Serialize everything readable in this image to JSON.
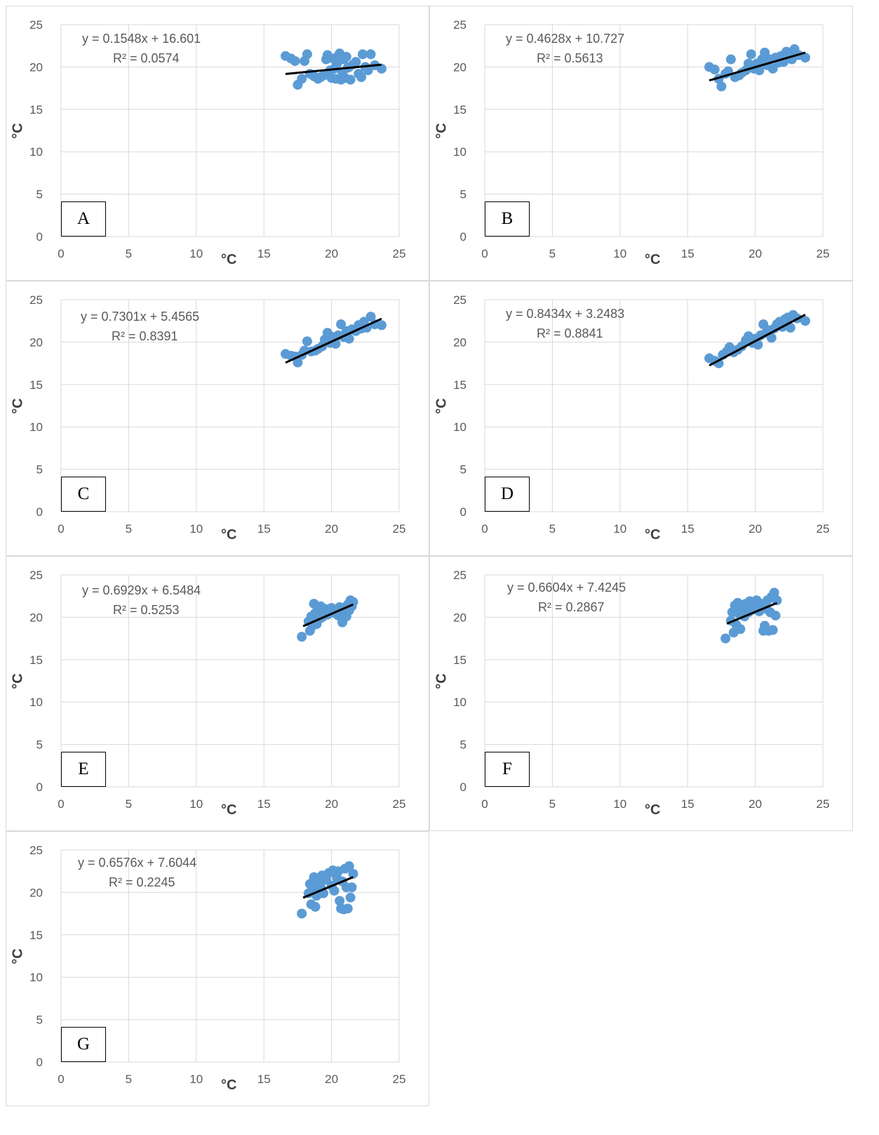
{
  "chart_data": [
    {
      "type": "scatter",
      "panel_label": "A",
      "xlabel": "°C",
      "ylabel": "°C",
      "xlim": [
        0,
        25
      ],
      "ylim": [
        0,
        25
      ],
      "xticks": [
        "0",
        "5",
        "10",
        "15",
        "20",
        "25"
      ],
      "yticks": [
        "0",
        "5",
        "10",
        "15",
        "20",
        "25"
      ],
      "grid": true,
      "trendline": {
        "equation": "y = 0.1548x + 16.601",
        "r2": "R² = 0.0574",
        "slope": 0.1548,
        "intercept": 16.601,
        "x_range": [
          16.6,
          23.7
        ]
      },
      "points": [
        [
          16.6,
          21.3
        ],
        [
          17.0,
          21.0
        ],
        [
          17.3,
          20.7
        ],
        [
          17.5,
          17.9
        ],
        [
          17.8,
          18.6
        ],
        [
          18.0,
          20.7
        ],
        [
          18.2,
          21.5
        ],
        [
          18.4,
          19.2
        ],
        [
          18.7,
          18.9
        ],
        [
          19.0,
          18.6
        ],
        [
          19.2,
          18.8
        ],
        [
          19.4,
          19.0
        ],
        [
          19.6,
          20.9
        ],
        [
          19.7,
          21.4
        ],
        [
          19.9,
          19.6
        ],
        [
          20.0,
          18.7
        ],
        [
          20.1,
          21.0
        ],
        [
          20.2,
          19.8
        ],
        [
          20.3,
          18.6
        ],
        [
          20.4,
          20.4
        ],
        [
          20.5,
          21.3
        ],
        [
          20.6,
          21.6
        ],
        [
          20.7,
          18.5
        ],
        [
          20.8,
          19.4
        ],
        [
          20.9,
          20.9
        ],
        [
          21.0,
          18.7
        ],
        [
          21.1,
          21.2
        ],
        [
          21.2,
          19.9
        ],
        [
          21.3,
          20.0
        ],
        [
          21.4,
          18.5
        ],
        [
          21.6,
          20.3
        ],
        [
          21.8,
          20.6
        ],
        [
          22.0,
          19.2
        ],
        [
          22.2,
          18.8
        ],
        [
          22.3,
          21.5
        ],
        [
          22.5,
          20.0
        ],
        [
          22.7,
          19.6
        ],
        [
          22.9,
          21.5
        ],
        [
          23.2,
          20.2
        ],
        [
          23.7,
          19.8
        ]
      ]
    },
    {
      "type": "scatter",
      "panel_label": "B",
      "xlabel": "°C",
      "ylabel": "°C",
      "xlim": [
        0,
        25
      ],
      "ylim": [
        0,
        25
      ],
      "xticks": [
        "0",
        "5",
        "10",
        "15",
        "20",
        "25"
      ],
      "yticks": [
        "0",
        "5",
        "10",
        "15",
        "20",
        "25"
      ],
      "grid": true,
      "trendline": {
        "equation": "y = 0.4628x + 10.727",
        "r2": "R² = 0.5613",
        "slope": 0.4628,
        "intercept": 10.727,
        "x_range": [
          16.6,
          23.7
        ]
      },
      "points": [
        [
          16.6,
          20.0
        ],
        [
          17.0,
          19.7
        ],
        [
          17.3,
          18.6
        ],
        [
          17.5,
          17.7
        ],
        [
          17.8,
          19.2
        ],
        [
          18.0,
          19.5
        ],
        [
          18.2,
          20.9
        ],
        [
          18.5,
          18.8
        ],
        [
          18.8,
          19.0
        ],
        [
          19.0,
          19.3
        ],
        [
          19.3,
          19.6
        ],
        [
          19.5,
          20.4
        ],
        [
          19.7,
          21.5
        ],
        [
          19.9,
          19.8
        ],
        [
          20.1,
          20.4
        ],
        [
          20.3,
          19.6
        ],
        [
          20.5,
          20.9
        ],
        [
          20.7,
          21.7
        ],
        [
          20.9,
          20.2
        ],
        [
          21.1,
          20.9
        ],
        [
          21.3,
          19.8
        ],
        [
          21.5,
          21.1
        ],
        [
          21.7,
          20.5
        ],
        [
          21.9,
          21.3
        ],
        [
          22.1,
          20.6
        ],
        [
          22.3,
          21.8
        ],
        [
          22.5,
          21.4
        ],
        [
          22.7,
          20.9
        ],
        [
          22.9,
          22.1
        ],
        [
          23.2,
          21.4
        ],
        [
          23.7,
          21.1
        ]
      ]
    },
    {
      "type": "scatter",
      "panel_label": "C",
      "xlabel": "°C",
      "ylabel": "°C",
      "xlim": [
        0,
        25
      ],
      "ylim": [
        0,
        25
      ],
      "xticks": [
        "0",
        "5",
        "10",
        "15",
        "20",
        "25"
      ],
      "yticks": [
        "0",
        "5",
        "10",
        "15",
        "20",
        "25"
      ],
      "grid": true,
      "trendline": {
        "equation": "y = 0.7301x + 5.4565",
        "r2": "R² = 0.8391",
        "slope": 0.7301,
        "intercept": 5.4565,
        "x_range": [
          16.6,
          23.7
        ]
      },
      "points": [
        [
          16.6,
          18.6
        ],
        [
          17.0,
          18.4
        ],
        [
          17.3,
          18.3
        ],
        [
          17.5,
          17.6
        ],
        [
          17.8,
          18.5
        ],
        [
          18.0,
          19.0
        ],
        [
          18.2,
          20.1
        ],
        [
          18.5,
          18.9
        ],
        [
          18.8,
          19.0
        ],
        [
          19.0,
          19.2
        ],
        [
          19.3,
          19.5
        ],
        [
          19.5,
          20.3
        ],
        [
          19.7,
          21.1
        ],
        [
          19.9,
          19.9
        ],
        [
          20.1,
          20.6
        ],
        [
          20.3,
          19.8
        ],
        [
          20.5,
          20.8
        ],
        [
          20.7,
          22.1
        ],
        [
          20.9,
          20.6
        ],
        [
          21.1,
          21.3
        ],
        [
          21.3,
          20.4
        ],
        [
          21.5,
          21.5
        ],
        [
          21.8,
          21.3
        ],
        [
          22.0,
          22.0
        ],
        [
          22.2,
          21.6
        ],
        [
          22.4,
          22.4
        ],
        [
          22.6,
          21.7
        ],
        [
          22.9,
          23.0
        ],
        [
          23.2,
          22.1
        ],
        [
          23.7,
          22.0
        ]
      ]
    },
    {
      "type": "scatter",
      "panel_label": "D",
      "xlabel": "°C",
      "ylabel": "°C",
      "xlim": [
        0,
        25
      ],
      "ylim": [
        0,
        25
      ],
      "xticks": [
        "0",
        "5",
        "10",
        "15",
        "20",
        "25"
      ],
      "yticks": [
        "0",
        "5",
        "10",
        "15",
        "20",
        "25"
      ],
      "grid": true,
      "trendline": {
        "equation": "y = 0.8434x + 3.2483",
        "r2": "R² = 0.8841",
        "slope": 0.8434,
        "intercept": 3.2483,
        "x_range": [
          16.6,
          23.7
        ]
      },
      "points": [
        [
          16.6,
          18.1
        ],
        [
          17.0,
          17.8
        ],
        [
          17.3,
          17.5
        ],
        [
          17.6,
          18.5
        ],
        [
          17.9,
          18.9
        ],
        [
          18.1,
          19.4
        ],
        [
          18.4,
          18.8
        ],
        [
          18.7,
          19.1
        ],
        [
          19.0,
          19.5
        ],
        [
          19.3,
          20.2
        ],
        [
          19.5,
          20.7
        ],
        [
          19.8,
          19.9
        ],
        [
          20.0,
          20.4
        ],
        [
          20.2,
          19.7
        ],
        [
          20.4,
          20.8
        ],
        [
          20.6,
          22.1
        ],
        [
          20.8,
          21.1
        ],
        [
          21.0,
          21.4
        ],
        [
          21.2,
          20.5
        ],
        [
          21.4,
          21.6
        ],
        [
          21.6,
          22.1
        ],
        [
          21.8,
          22.4
        ],
        [
          22.0,
          21.8
        ],
        [
          22.2,
          22.7
        ],
        [
          22.4,
          22.9
        ],
        [
          22.6,
          21.7
        ],
        [
          22.8,
          23.2
        ],
        [
          23.1,
          22.8
        ],
        [
          23.7,
          22.5
        ]
      ]
    },
    {
      "type": "scatter",
      "panel_label": "E",
      "xlabel": "°C",
      "ylabel": "°C",
      "xlim": [
        0,
        25
      ],
      "ylim": [
        0,
        25
      ],
      "xticks": [
        "0",
        "5",
        "10",
        "15",
        "20",
        "25"
      ],
      "yticks": [
        "0",
        "5",
        "10",
        "15",
        "20",
        "25"
      ],
      "grid": true,
      "trendline": {
        "equation": "y = 0.6929x + 6.5484",
        "r2": "R² = 0.5253",
        "slope": 0.6929,
        "intercept": 6.5484,
        "x_range": [
          17.9,
          21.6
        ]
      },
      "points": [
        [
          17.8,
          17.7
        ],
        [
          18.3,
          19.5
        ],
        [
          18.4,
          18.4
        ],
        [
          18.5,
          20.1
        ],
        [
          18.6,
          19.0
        ],
        [
          18.7,
          21.6
        ],
        [
          18.8,
          20.5
        ],
        [
          18.9,
          19.2
        ],
        [
          19.0,
          20.8
        ],
        [
          19.1,
          19.8
        ],
        [
          19.2,
          21.3
        ],
        [
          19.3,
          20.0
        ],
        [
          19.4,
          20.6
        ],
        [
          19.5,
          21.0
        ],
        [
          19.7,
          20.3
        ],
        [
          19.8,
          20.8
        ],
        [
          20.0,
          21.1
        ],
        [
          20.2,
          20.5
        ],
        [
          20.4,
          20.9
        ],
        [
          20.5,
          20.2
        ],
        [
          20.6,
          21.2
        ],
        [
          20.8,
          19.4
        ],
        [
          20.9,
          20.4
        ],
        [
          21.0,
          21.0
        ],
        [
          21.1,
          20.1
        ],
        [
          21.2,
          21.5
        ],
        [
          21.3,
          20.8
        ],
        [
          21.4,
          22.0
        ],
        [
          21.5,
          21.3
        ],
        [
          21.6,
          21.8
        ]
      ]
    },
    {
      "type": "scatter",
      "panel_label": "F",
      "xlabel": "°C",
      "ylabel": "°C",
      "xlim": [
        0,
        25
      ],
      "ylim": [
        0,
        25
      ],
      "xticks": [
        "0",
        "5",
        "10",
        "15",
        "20",
        "25"
      ],
      "yticks": [
        "0",
        "5",
        "10",
        "15",
        "20",
        "25"
      ],
      "grid": true,
      "trendline": {
        "equation": "y = 0.6604x + 7.4245",
        "r2": "R² = 0.2867",
        "slope": 0.6604,
        "intercept": 7.4245,
        "x_range": [
          17.9,
          21.6
        ]
      },
      "points": [
        [
          17.8,
          17.5
        ],
        [
          18.2,
          19.6
        ],
        [
          18.3,
          20.6
        ],
        [
          18.4,
          18.2
        ],
        [
          18.5,
          21.4
        ],
        [
          18.6,
          19.1
        ],
        [
          18.7,
          21.7
        ],
        [
          18.8,
          20.4
        ],
        [
          18.9,
          18.6
        ],
        [
          19.0,
          21.2
        ],
        [
          19.2,
          20.1
        ],
        [
          19.3,
          21.6
        ],
        [
          19.5,
          20.6
        ],
        [
          19.6,
          21.9
        ],
        [
          19.8,
          20.9
        ],
        [
          20.0,
          21.4
        ],
        [
          20.1,
          22.0
        ],
        [
          20.3,
          20.7
        ],
        [
          20.4,
          21.6
        ],
        [
          20.6,
          18.4
        ],
        [
          20.7,
          19.0
        ],
        [
          20.8,
          21.0
        ],
        [
          20.9,
          22.0
        ],
        [
          21.0,
          18.4
        ],
        [
          21.1,
          20.6
        ],
        [
          21.2,
          22.4
        ],
        [
          21.3,
          18.5
        ],
        [
          21.4,
          22.9
        ],
        [
          21.5,
          20.2
        ],
        [
          21.6,
          22.0
        ]
      ]
    },
    {
      "type": "scatter",
      "panel_label": "G",
      "xlabel": "°C",
      "ylabel": "°C",
      "xlim": [
        0,
        25
      ],
      "ylim": [
        0,
        25
      ],
      "xticks": [
        "0",
        "5",
        "10",
        "15",
        "20",
        "25"
      ],
      "yticks": [
        "0",
        "5",
        "10",
        "15",
        "20",
        "25"
      ],
      "grid": true,
      "trendline": {
        "equation": "y = 0.6576x + 7.6044",
        "r2": "R² = 0.2245",
        "slope": 0.6576,
        "intercept": 7.6044,
        "x_range": [
          17.9,
          21.6
        ]
      },
      "points": [
        [
          17.8,
          17.5
        ],
        [
          18.3,
          19.9
        ],
        [
          18.4,
          21.0
        ],
        [
          18.5,
          18.6
        ],
        [
          18.6,
          20.4
        ],
        [
          18.7,
          21.8
        ],
        [
          18.8,
          18.3
        ],
        [
          18.9,
          19.6
        ],
        [
          19.0,
          21.3
        ],
        [
          19.2,
          20.6
        ],
        [
          19.3,
          22.0
        ],
        [
          19.4,
          19.9
        ],
        [
          19.6,
          21.5
        ],
        [
          19.8,
          22.3
        ],
        [
          20.0,
          20.8
        ],
        [
          20.1,
          22.6
        ],
        [
          20.2,
          20.2
        ],
        [
          20.4,
          21.7
        ],
        [
          20.5,
          22.5
        ],
        [
          20.6,
          19.0
        ],
        [
          20.7,
          18.1
        ],
        [
          20.8,
          21.3
        ],
        [
          20.9,
          18.0
        ],
        [
          21.0,
          22.8
        ],
        [
          21.1,
          20.6
        ],
        [
          21.2,
          18.1
        ],
        [
          21.3,
          23.1
        ],
        [
          21.4,
          19.4
        ],
        [
          21.5,
          20.6
        ],
        [
          21.6,
          22.2
        ]
      ]
    }
  ],
  "colors": {
    "marker": "#5b9bd5",
    "trendline": "#000000",
    "grid": "#d9d9d9",
    "tick_text": "#595959"
  }
}
